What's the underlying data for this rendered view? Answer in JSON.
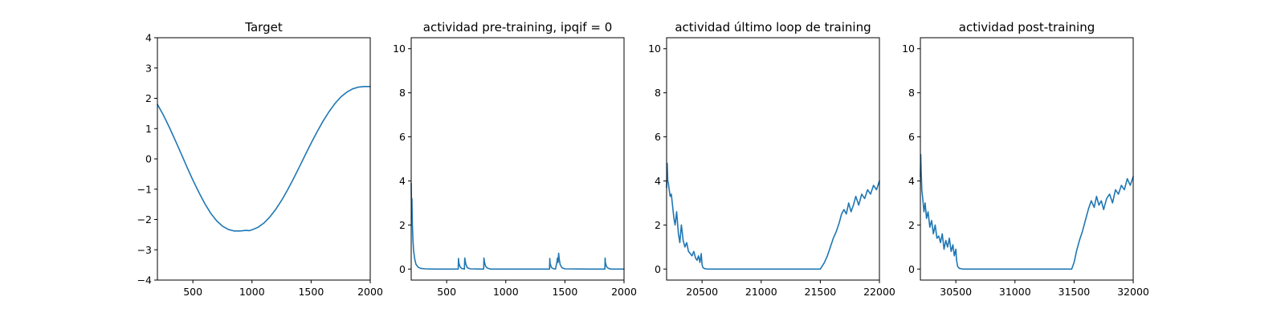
{
  "colors": {
    "series": "#1f77b4",
    "axes": "#000000",
    "background": "#ffffff"
  },
  "chart_data": [
    {
      "type": "line",
      "title": "Target",
      "xlim": [
        200,
        2000
      ],
      "ylim": [
        -4,
        4
      ],
      "xticks": [
        500,
        1000,
        1500,
        2000
      ],
      "xtick_labels": [
        "500",
        "1000",
        "1500",
        "2000"
      ],
      "yticks": [
        -4,
        -3,
        -2,
        -1,
        0,
        1,
        2,
        3,
        4
      ],
      "ytick_labels": [
        "−4",
        "−3",
        "−2",
        "−1",
        "0",
        "1",
        "2",
        "3",
        "4"
      ],
      "grid": false,
      "series": [
        {
          "x": [
            200,
            250,
            300,
            350,
            400,
            450,
            500,
            550,
            600,
            650,
            700,
            750,
            800,
            850,
            900,
            950,
            975,
            1000,
            1050,
            1100,
            1150,
            1200,
            1250,
            1300,
            1350,
            1400,
            1450,
            1500,
            1550,
            1600,
            1650,
            1700,
            1750,
            1800,
            1850,
            1900,
            1950,
            2000
          ],
          "y": [
            1.8,
            1.45,
            1.05,
            0.62,
            0.18,
            -0.27,
            -0.7,
            -1.1,
            -1.47,
            -1.79,
            -2.04,
            -2.22,
            -2.33,
            -2.38,
            -2.38,
            -2.36,
            -2.37,
            -2.34,
            -2.26,
            -2.12,
            -1.92,
            -1.67,
            -1.37,
            -1.03,
            -0.66,
            -0.27,
            0.13,
            0.52,
            0.89,
            1.24,
            1.55,
            1.82,
            2.04,
            2.2,
            2.31,
            2.37,
            2.39,
            2.39
          ]
        }
      ]
    },
    {
      "type": "line",
      "title": "actividad pre-training, ipqif = 0",
      "xlim": [
        200,
        2000
      ],
      "ylim": [
        -0.5,
        10.5
      ],
      "xticks": [
        500,
        1000,
        1500,
        2000
      ],
      "xtick_labels": [
        "500",
        "1000",
        "1500",
        "2000"
      ],
      "yticks": [
        0,
        2,
        4,
        6,
        8,
        10
      ],
      "ytick_labels": [
        "0",
        "2",
        "4",
        "6",
        "8",
        "10"
      ],
      "grid": false,
      "series": [
        {
          "x": [
            200,
            203,
            206,
            210,
            215,
            220,
            230,
            240,
            260,
            280,
            320,
            400,
            500,
            598,
            600,
            603,
            612,
            625,
            650,
            653,
            662,
            675,
            700,
            800,
            813,
            815,
            820,
            830,
            845,
            870,
            1000,
            1200,
            1370,
            1372,
            1375,
            1385,
            1400,
            1420,
            1432,
            1437,
            1442,
            1447,
            1452,
            1460,
            1475,
            1500,
            1700,
            1838,
            1840,
            1843,
            1853,
            1868,
            1890,
            2000
          ],
          "y": [
            3.9,
            2.6,
            3.2,
            2.0,
            1.3,
            0.85,
            0.45,
            0.22,
            0.08,
            0.03,
            0.01,
            0.0,
            0.0,
            0.0,
            0.48,
            0.28,
            0.12,
            0.03,
            0.0,
            0.5,
            0.22,
            0.06,
            0.01,
            0.0,
            0.0,
            0.5,
            0.3,
            0.12,
            0.04,
            0.0,
            0.0,
            0.0,
            0.0,
            0.48,
            0.25,
            0.08,
            0.02,
            0.0,
            0.3,
            0.5,
            0.3,
            0.72,
            0.45,
            0.2,
            0.06,
            0.01,
            0.0,
            0.0,
            0.5,
            0.28,
            0.1,
            0.03,
            0.0,
            0.0
          ]
        }
      ]
    },
    {
      "type": "line",
      "title": "actividad último loop de training",
      "xlim": [
        20200,
        22000
      ],
      "ylim": [
        -0.5,
        10.5
      ],
      "xticks": [
        20500,
        21000,
        21500,
        22000
      ],
      "xtick_labels": [
        "20500",
        "21000",
        "21500",
        "22000"
      ],
      "yticks": [
        0,
        2,
        4,
        6,
        8,
        10
      ],
      "ytick_labels": [
        "0",
        "2",
        "4",
        "6",
        "8",
        "10"
      ],
      "grid": false,
      "series": [
        {
          "x": [
            20200,
            20205,
            20210,
            20215,
            20222,
            20230,
            20240,
            20250,
            20262,
            20272,
            20285,
            20300,
            20312,
            20325,
            20340,
            20355,
            20370,
            20385,
            20400,
            20415,
            20430,
            20445,
            20458,
            20470,
            20482,
            20493,
            20500,
            20506,
            20520,
            20545,
            20600,
            21000,
            21500,
            21535,
            21560,
            21585,
            21610,
            21635,
            21660,
            21680,
            21700,
            21720,
            21740,
            21760,
            21780,
            21800,
            21825,
            21850,
            21875,
            21900,
            21925,
            21950,
            21975,
            22000
          ],
          "y": [
            3.7,
            4.8,
            4.0,
            3.9,
            3.6,
            3.3,
            3.4,
            2.9,
            2.3,
            2.0,
            2.6,
            1.6,
            1.2,
            2.0,
            1.3,
            1.0,
            1.2,
            0.8,
            0.7,
            0.6,
            0.8,
            0.5,
            0.4,
            0.6,
            0.3,
            0.7,
            0.2,
            0.08,
            0.02,
            0.0,
            0.0,
            0.0,
            0.0,
            0.3,
            0.6,
            1.0,
            1.4,
            1.7,
            2.1,
            2.5,
            2.7,
            2.5,
            3.0,
            2.6,
            2.9,
            3.3,
            2.9,
            3.4,
            3.2,
            3.6,
            3.4,
            3.8,
            3.6,
            4.0
          ]
        }
      ]
    },
    {
      "type": "line",
      "title": "actividad post-training",
      "xlim": [
        30200,
        32000
      ],
      "ylim": [
        -0.5,
        10.5
      ],
      "xticks": [
        30500,
        31000,
        31500,
        32000
      ],
      "xtick_labels": [
        "30500",
        "31000",
        "31500",
        "32000"
      ],
      "yticks": [
        0,
        2,
        4,
        6,
        8,
        10
      ],
      "ytick_labels": [
        "0",
        "2",
        "4",
        "6",
        "8",
        "10"
      ],
      "grid": false,
      "series": [
        {
          "x": [
            30200,
            30203,
            30207,
            30212,
            30220,
            30230,
            30240,
            30252,
            30265,
            30280,
            30295,
            30310,
            30325,
            30340,
            30355,
            30370,
            30385,
            30400,
            30415,
            30430,
            30445,
            30460,
            30475,
            30487,
            30500,
            30506,
            30515,
            30530,
            30560,
            31000,
            31480,
            31500,
            31520,
            31545,
            31570,
            31595,
            31620,
            31645,
            31670,
            31690,
            31710,
            31730,
            31750,
            31775,
            31800,
            31825,
            31850,
            31875,
            31900,
            31925,
            31950,
            31975,
            32000
          ],
          "y": [
            4.2,
            5.2,
            4.4,
            3.6,
            3.2,
            2.6,
            3.0,
            2.3,
            2.6,
            1.9,
            2.2,
            1.6,
            2.0,
            1.4,
            1.5,
            1.2,
            1.6,
            0.9,
            1.3,
            1.0,
            1.4,
            0.8,
            1.1,
            0.6,
            0.9,
            0.4,
            0.12,
            0.03,
            0.0,
            0.0,
            0.0,
            0.3,
            0.8,
            1.3,
            1.7,
            2.2,
            2.7,
            3.1,
            2.8,
            3.3,
            2.9,
            3.1,
            2.7,
            3.2,
            3.4,
            3.0,
            3.6,
            3.4,
            3.8,
            3.6,
            4.1,
            3.8,
            4.2
          ]
        }
      ]
    }
  ]
}
